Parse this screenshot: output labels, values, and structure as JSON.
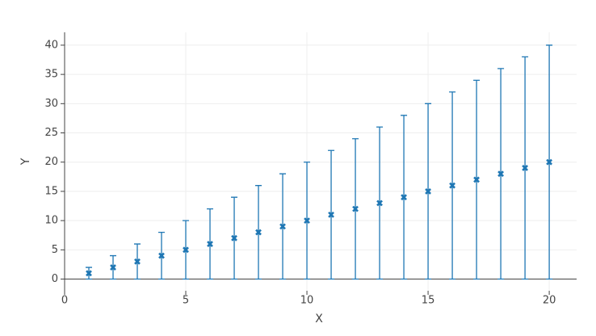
{
  "chart_data": {
    "type": "scatter",
    "xlabel": "X",
    "ylabel": "Y",
    "x": [
      1,
      2,
      3,
      4,
      5,
      6,
      7,
      8,
      9,
      10,
      11,
      12,
      13,
      14,
      15,
      16,
      17,
      18,
      19,
      20
    ],
    "values": [
      1,
      2,
      3,
      4,
      5,
      6,
      7,
      8,
      9,
      10,
      11,
      12,
      13,
      14,
      15,
      16,
      17,
      18,
      19,
      20
    ],
    "errors": [
      1,
      2,
      3,
      4,
      5,
      6,
      7,
      8,
      9,
      10,
      11,
      12,
      13,
      14,
      15,
      16,
      17,
      18,
      19,
      20
    ],
    "color": "#1f77b4",
    "xlim": [
      0,
      21.13
    ],
    "xticks": [
      0,
      5,
      10,
      15,
      20
    ],
    "ylim": [
      -2,
      42.2
    ],
    "yticks": [
      0,
      5,
      10,
      15,
      20,
      25,
      30,
      35,
      40
    ],
    "grid": true
  }
}
